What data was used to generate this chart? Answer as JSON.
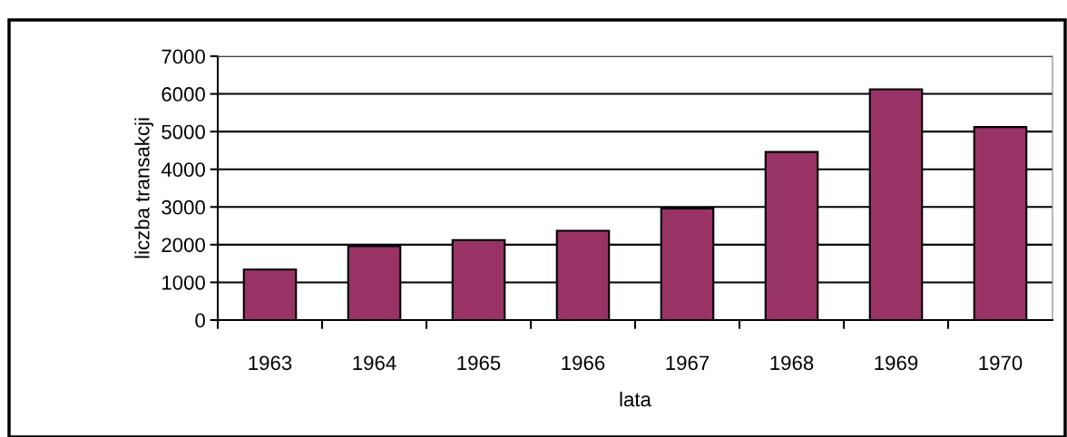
{
  "chart_data": {
    "type": "bar",
    "xlabel": "lata",
    "ylabel": "liczba transakcji",
    "categories": [
      "1963",
      "1964",
      "1965",
      "1966",
      "1967",
      "1968",
      "1969",
      "1970"
    ],
    "values": [
      1340,
      1960,
      2120,
      2370,
      2960,
      4460,
      6120,
      5120
    ],
    "color": "#993366",
    "ylim": [
      0,
      7000
    ],
    "yticks": [
      0,
      1000,
      2000,
      3000,
      4000,
      5000,
      6000,
      7000
    ],
    "grid": "y",
    "legend": false
  }
}
